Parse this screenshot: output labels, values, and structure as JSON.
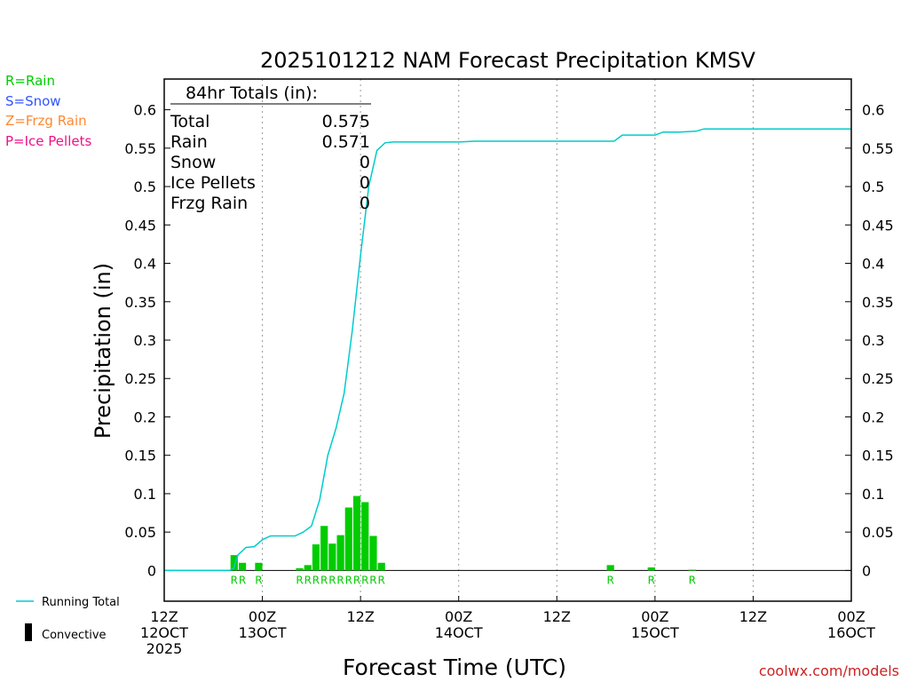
{
  "chart_data": {
    "type": "bar+line",
    "title": "2025101212 NAM Forecast Precipitation KMSV",
    "xlabel": "Forecast Time (UTC)",
    "ylabel": "Precipitation (in)",
    "ylim": [
      -0.04,
      0.64
    ],
    "xlim_hours": [
      0,
      84
    ],
    "y_ticks": [
      0,
      0.05,
      0.1,
      0.15,
      0.2,
      0.25,
      0.3,
      0.35,
      0.4,
      0.45,
      0.5,
      0.55,
      0.6
    ],
    "y_tick_labels": [
      "0",
      "0.05",
      "0.1",
      "0.15",
      "0.2",
      "0.25",
      "0.3",
      "0.35",
      "0.4",
      "0.45",
      "0.5",
      "0.55",
      "0.6"
    ],
    "x_ticks": [
      {
        "hour": 0,
        "lines": [
          "12Z",
          "12OCT",
          "2025"
        ]
      },
      {
        "hour": 12,
        "lines": [
          "00Z",
          "13OCT"
        ]
      },
      {
        "hour": 24,
        "lines": [
          "12Z"
        ]
      },
      {
        "hour": 36,
        "lines": [
          "00Z",
          "14OCT"
        ]
      },
      {
        "hour": 48,
        "lines": [
          "12Z"
        ]
      },
      {
        "hour": 60,
        "lines": [
          "00Z",
          "15OCT"
        ]
      },
      {
        "hour": 72,
        "lines": [
          "12Z"
        ]
      },
      {
        "hour": 84,
        "lines": [
          "00Z",
          "16OCT"
        ]
      }
    ],
    "grid_hours": [
      12,
      24,
      36,
      48,
      60,
      72
    ],
    "precip_bars": {
      "name": "Rain",
      "hours": [
        9,
        10,
        12,
        17,
        18,
        19,
        20,
        21,
        22,
        23,
        24,
        25,
        26,
        27,
        55,
        60,
        65
      ],
      "values": [
        0.02,
        0.01,
        0.01,
        0.003,
        0.007,
        0.034,
        0.058,
        0.035,
        0.046,
        0.082,
        0.097,
        0.089,
        0.045,
        0.01,
        0.007,
        0.004,
        0.001
      ],
      "type_labels": [
        "R",
        "R",
        "R",
        "R",
        "R",
        "R",
        "R",
        "R",
        "R",
        "R",
        "R",
        "R",
        "R",
        "R",
        "R",
        "R",
        "R"
      ]
    },
    "running_total": {
      "name": "Running Total",
      "hours": [
        0,
        8,
        8.5,
        9,
        10,
        11,
        12,
        13,
        14,
        15,
        16,
        17,
        18,
        19,
        20,
        21,
        22,
        23,
        24,
        25,
        26,
        27,
        28,
        29,
        30,
        36,
        38,
        48,
        55,
        56,
        60,
        61,
        63,
        65,
        66,
        84
      ],
      "values": [
        0,
        0,
        0.003,
        0.02,
        0.03,
        0.031,
        0.04,
        0.045,
        0.045,
        0.045,
        0.045,
        0.05,
        0.058,
        0.092,
        0.15,
        0.185,
        0.231,
        0.313,
        0.41,
        0.5,
        0.547,
        0.557,
        0.558,
        0.558,
        0.558,
        0.558,
        0.559,
        0.559,
        0.559,
        0.567,
        0.567,
        0.571,
        0.571,
        0.572,
        0.575,
        0.575
      ]
    },
    "totals_box": {
      "header": "84hr Totals (in):",
      "rows": [
        {
          "label": "Total",
          "value": "0.575"
        },
        {
          "label": "Rain",
          "value": "0.571"
        },
        {
          "label": "Snow",
          "value": "0"
        },
        {
          "label": "Ice Pellets",
          "value": "0"
        },
        {
          "label": "Frzg Rain",
          "value": "0"
        }
      ]
    },
    "type_legend": [
      {
        "text": "R=Rain",
        "color": "#00cc00"
      },
      {
        "text": "S=Snow",
        "color": "#3355ff"
      },
      {
        "text": "Z=Frzg Rain",
        "color": "#ff8833"
      },
      {
        "text": "P=Ice Pellets",
        "color": "#ee1188"
      }
    ],
    "bottom_legend": [
      {
        "text": "Running Total",
        "symbol": "line",
        "color": "#00cccc"
      },
      {
        "text": "Convective",
        "symbol": "bar",
        "color": "#000000"
      }
    ],
    "credit": "coolwx.com/models",
    "colors": {
      "bar": "#00cc00",
      "line": "#00cccc",
      "axis": "#000000",
      "grid": "#999999",
      "credit": "#cc2222"
    }
  }
}
